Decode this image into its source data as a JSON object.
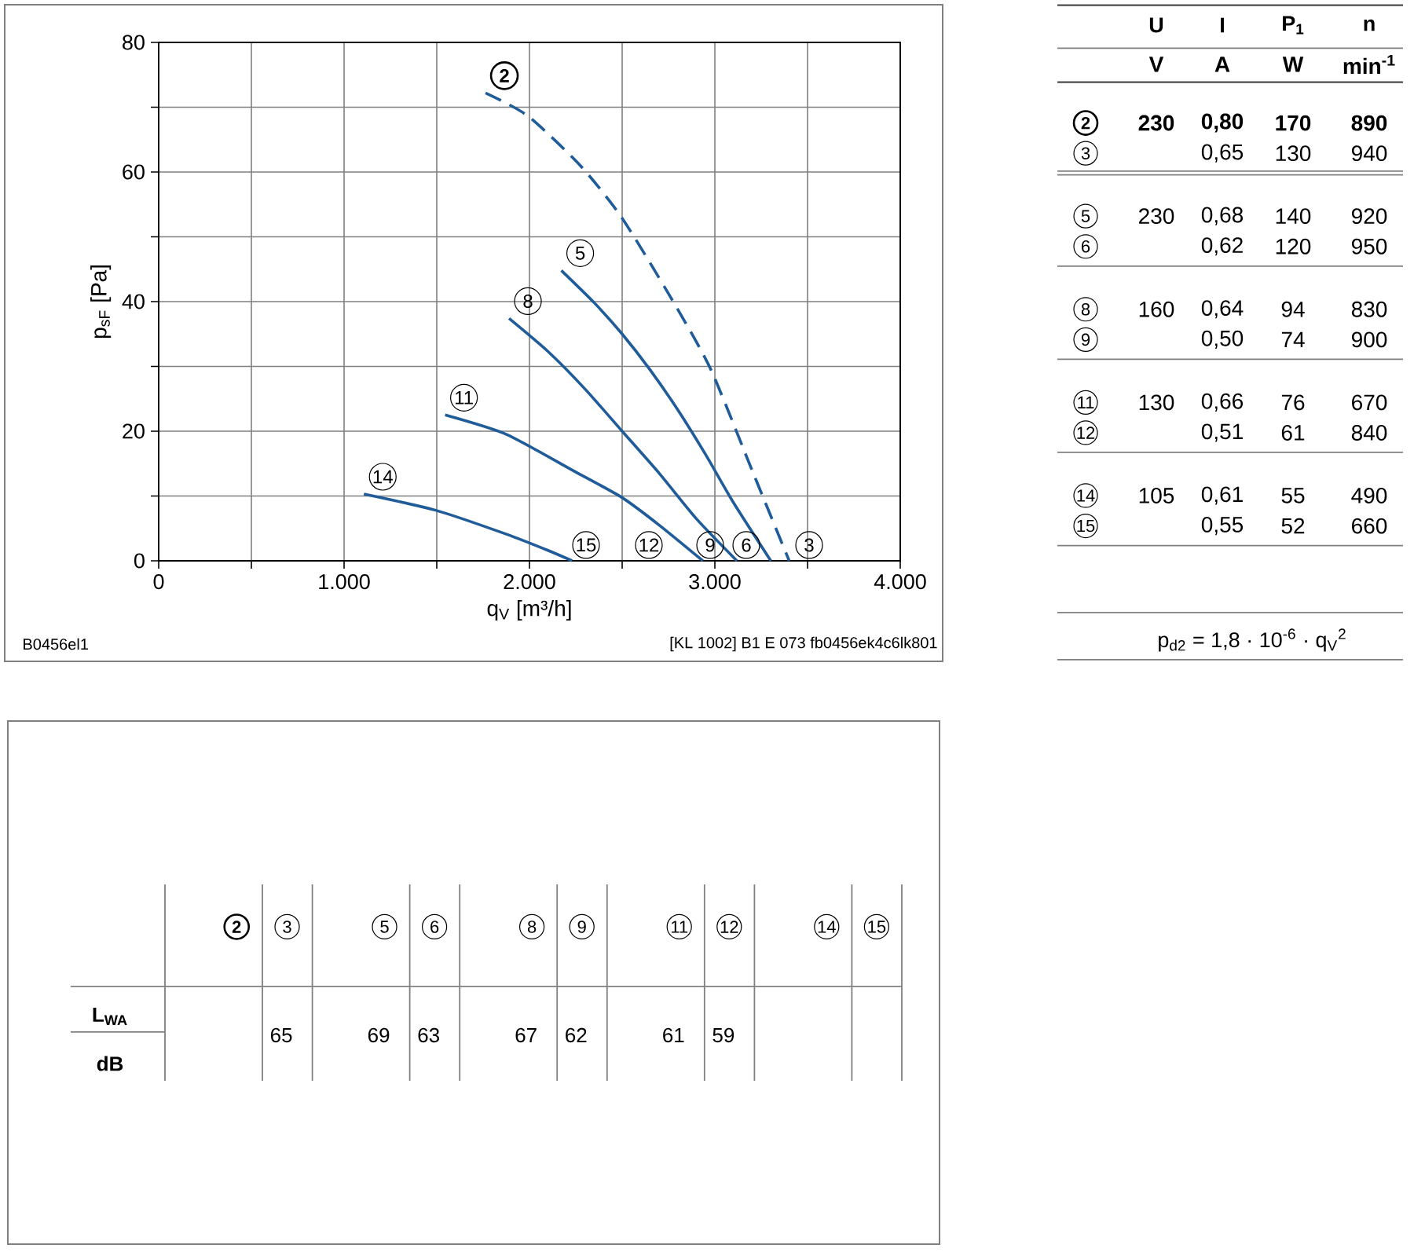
{
  "chart_data": [
    {
      "type": "line",
      "xlabel": "q$_{V}$ [m³/h]",
      "ylabel": "p$_{sF}$ [Pa]",
      "xlim": [
        0,
        4000
      ],
      "ylim": [
        0,
        80
      ],
      "xticks": [
        0,
        {
          "value": 500,
          "label": null
        },
        {
          "value": 1000,
          "label": "1.000"
        },
        {
          "value": 1500,
          "label": null
        },
        {
          "value": 2000,
          "label": "2.000"
        },
        {
          "value": 2500,
          "label": null
        },
        {
          "value": 3000,
          "label": "3.000"
        },
        {
          "value": 3500,
          "label": null
        },
        {
          "value": 4000,
          "label": "4.000"
        }
      ],
      "yticks": [
        0,
        {
          "value": 10,
          "label": null
        },
        20,
        {
          "value": 30,
          "label": null
        },
        40,
        {
          "value": 50,
          "label": null
        },
        60,
        {
          "value": 70,
          "label": null
        },
        80
      ],
      "grid": true,
      "series": [
        {
          "name": "2",
          "color": "#1f5c99",
          "line_style": "dashed",
          "x": [
            1763,
            1989,
            2271,
            2497,
            2765,
            2977,
            3203,
            3401
          ],
          "values": [
            72.2,
            68.7,
            61.1,
            53.0,
            40.5,
            29.6,
            13.8,
            0
          ]
        },
        {
          "name": "5",
          "color": "#1f5c99",
          "line_style": "solid",
          "x": [
            2172,
            2350,
            2500,
            2650,
            2800,
            2950,
            3100,
            3302
          ],
          "values": [
            44.8,
            39.8,
            35,
            29.5,
            23.3,
            16.4,
            9,
            0
          ]
        },
        {
          "name": "8",
          "color": "#1f5c99",
          "line_style": "solid",
          "x": [
            1890,
            2100,
            2300,
            2500,
            2700,
            2900,
            3119
          ],
          "values": [
            37.4,
            32.3,
            26.5,
            20,
            13.5,
            6.5,
            0
          ]
        },
        {
          "name": "11",
          "color": "#1f5c99",
          "line_style": "solid",
          "x": [
            1545,
            1876,
            2243,
            2497,
            2700,
            2935
          ],
          "values": [
            22.5,
            19.5,
            13.8,
            9.8,
            5.5,
            0
          ]
        },
        {
          "name": "14",
          "color": "#1f5c99",
          "line_style": "solid",
          "x": [
            1107,
            1494,
            1876,
            2100,
            2230
          ],
          "values": [
            10.3,
            7.8,
            4.1,
            1.6,
            0
          ]
        }
      ],
      "annotations": [
        "15",
        "12",
        "9",
        "6",
        "3",
        "B0456el1",
        "[KL 1002] B1 E 073 fb0456ek4c6lk801"
      ]
    },
    {
      "type": "other",
      "categories": [
        "U",
        "I",
        "P$_{1}$",
        "n"
      ],
      "y_categories": [
        null,
        "2",
        "3",
        "5",
        "6",
        "8",
        "9",
        "11",
        "12",
        "14",
        "15"
      ],
      "cell_labels": [
        [
          "V",
          "A",
          "W",
          "min$^{-1}$"
        ],
        [
          "230",
          "0,80",
          "170",
          "890"
        ],
        [
          null,
          "0,65",
          "130",
          "940"
        ],
        [
          "230",
          "0,68",
          "140",
          "920"
        ],
        [
          null,
          "0,62",
          "120",
          "950"
        ],
        [
          "160",
          "0,64",
          "94",
          "830"
        ],
        [
          null,
          "0,50",
          "74",
          "900"
        ],
        [
          "130",
          "0,66",
          "76",
          "670"
        ],
        [
          null,
          "0,51",
          "61",
          "840"
        ],
        [
          "105",
          "0,61",
          "55",
          "490"
        ],
        [
          null,
          "0,55",
          "52",
          "660"
        ]
      ],
      "annotations": [
        "p$_{d2}$ = 1,8 · 10$^{-6}$ · q$_{V}$$^{2}$"
      ]
    },
    {
      "type": "other",
      "categories": [
        "2",
        "3",
        "5",
        "6",
        "8",
        "9",
        "11",
        "12",
        "14",
        "15"
      ],
      "y_categories": [
        "L$_{WA}$"
      ],
      "cell_labels": [
        [
          null,
          "65",
          "69",
          "63",
          "67",
          "62",
          "61",
          "59",
          null,
          null
        ]
      ],
      "annotations": [
        "dB"
      ]
    }
  ]
}
